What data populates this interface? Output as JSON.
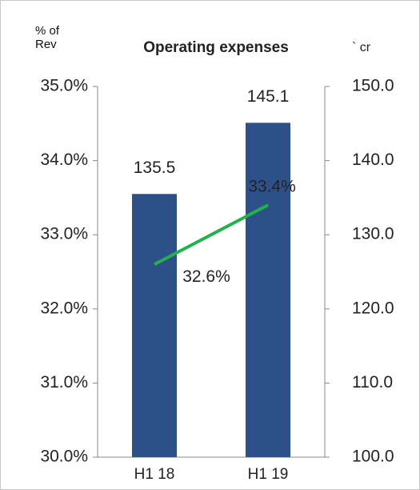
{
  "chart_data": {
    "type": "bar_line",
    "title": "Operating expenses",
    "y_label": "% of\nRev",
    "y2_label": "` cr",
    "categories": [
      "H1 18",
      "H1 19"
    ],
    "series": [
      {
        "type": "bar",
        "color": "#2e5089",
        "axis": "y2",
        "values": [
          135.5,
          145.1
        ]
      },
      {
        "type": "line",
        "color": "#22b14c",
        "axis": "y",
        "values": [
          32.6,
          33.4
        ],
        "value_labels": [
          "32.6%",
          "33.4%"
        ]
      }
    ],
    "ylim": [
      30,
      35
    ],
    "yticks": [
      {
        "value": 30,
        "label": "30.0%"
      },
      {
        "value": 31,
        "label": "31.0%"
      },
      {
        "value": 32,
        "label": "32.0%"
      },
      {
        "value": 33,
        "label": "33.0%"
      },
      {
        "value": 34,
        "label": "34.0%"
      },
      {
        "value": 35,
        "label": "35.0%"
      }
    ],
    "y2lim": [
      100,
      150
    ],
    "y2ticks": [
      {
        "value": 100,
        "label": "100.0"
      },
      {
        "value": 110,
        "label": "110.0"
      },
      {
        "value": 120,
        "label": "120.0"
      },
      {
        "value": 130,
        "label": "130.0"
      },
      {
        "value": 140,
        "label": "140.0"
      },
      {
        "value": 150,
        "label": "150.0"
      }
    ]
  }
}
